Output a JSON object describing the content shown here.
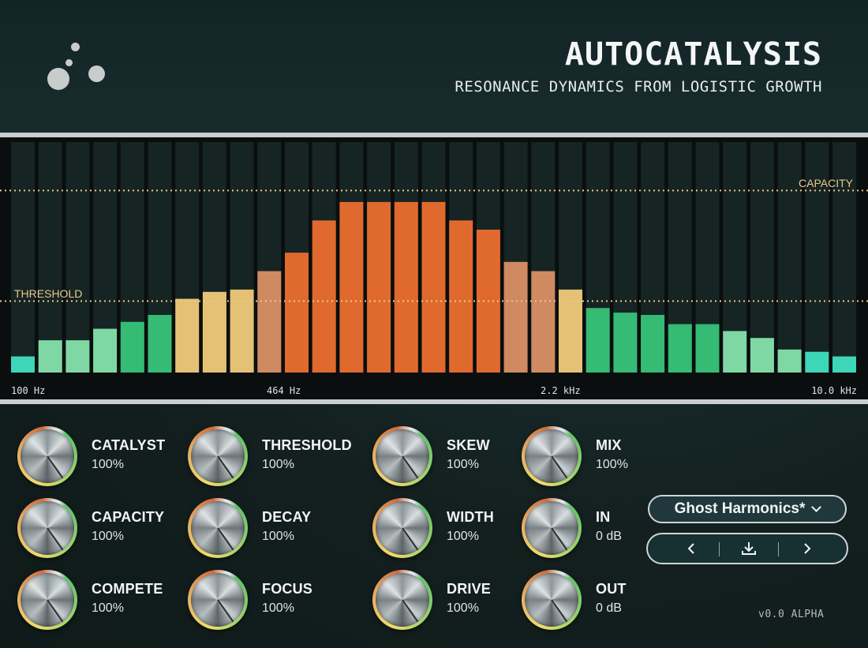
{
  "header": {
    "title": "AUTOCATALYSIS",
    "subtitle": "RESONANCE DYNAMICS FROM LOGISTIC GROWTH",
    "logo": "three-dots-logo-icon"
  },
  "spectrum": {
    "capacity_label": "CAPACITY",
    "threshold_label": "THRESHOLD",
    "capacity_level": 0.79,
    "threshold_level": 0.31,
    "freq_labels": [
      "100 Hz",
      "464 Hz",
      "2.2 kHz",
      "10.0 kHz"
    ],
    "bar_levels": [
      0.07,
      0.14,
      0.14,
      0.19,
      0.22,
      0.25,
      0.32,
      0.35,
      0.36,
      0.44,
      0.52,
      0.66,
      0.74,
      0.74,
      0.74,
      0.74,
      0.66,
      0.62,
      0.48,
      0.44,
      0.36,
      0.28,
      0.26,
      0.25,
      0.21,
      0.21,
      0.18,
      0.15,
      0.1,
      0.09,
      0.07
    ],
    "colors": {
      "teal": "#3dd6b8",
      "light_green": "#7fd8a4",
      "green": "#35bb74",
      "sand": "#e5c176",
      "salmon": "#cf8a62",
      "orange": "#e06a2e"
    }
  },
  "knobs": [
    {
      "label": "CATALYST",
      "value": "100%"
    },
    {
      "label": "THRESHOLD",
      "value": "100%"
    },
    {
      "label": "SKEW",
      "value": "100%"
    },
    {
      "label": "MIX",
      "value": "100%"
    },
    {
      "label": "CAPACITY",
      "value": "100%"
    },
    {
      "label": "DECAY",
      "value": "100%"
    },
    {
      "label": "WIDTH",
      "value": "100%"
    },
    {
      "label": "IN",
      "value": "0 dB"
    },
    {
      "label": "COMPETE",
      "value": "100%"
    },
    {
      "label": "FOCUS",
      "value": "100%"
    },
    {
      "label": "DRIVE",
      "value": "100%"
    },
    {
      "label": "OUT",
      "value": "0 dB"
    }
  ],
  "preset": {
    "name": "Ghost Harmonics*",
    "icons": [
      "chevron-down-icon",
      "chevron-left-icon",
      "download-icon",
      "chevron-right-icon"
    ]
  },
  "version": "v0.0 ALPHA"
}
